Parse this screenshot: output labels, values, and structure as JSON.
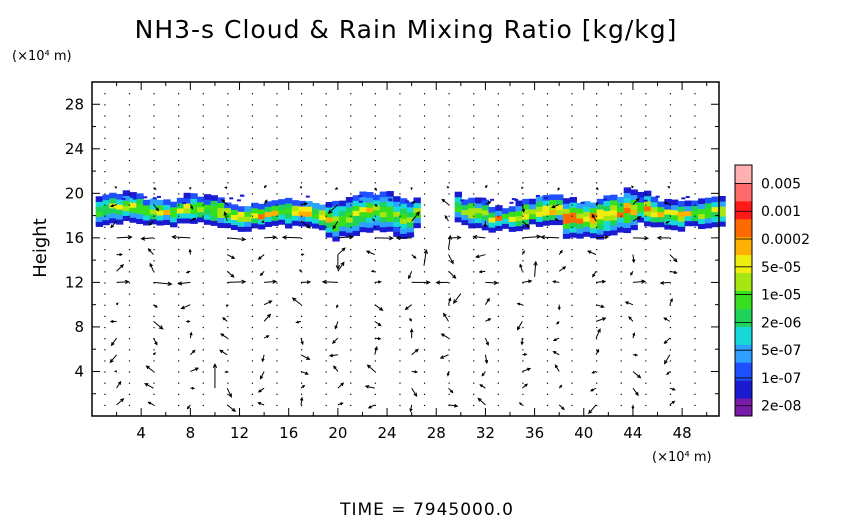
{
  "chart_data": {
    "type": "heatmap",
    "title": "NH3-s Cloud & Rain Mixing Ratio [kg/kg]",
    "ylabel": "Height",
    "xunit": "(×10⁴ m)",
    "yunit": "(×10⁴ m)",
    "xlim": [
      0,
      51
    ],
    "ylim": [
      0,
      30
    ],
    "xticks": [
      4,
      8,
      12,
      16,
      20,
      24,
      28,
      32,
      36,
      40,
      44,
      48
    ],
    "yticks": [
      4,
      8,
      12,
      16,
      20,
      24,
      28
    ],
    "time_label": "TIME  =  7945000.0",
    "colorbar": {
      "labels": [
        "0.005",
        "0.001",
        "0.0002",
        "5e-05",
        "1e-05",
        "2e-06",
        "5e-07",
        "1e-07",
        "2e-08"
      ],
      "colors": [
        "#7a1aa8",
        "#1a1ad0",
        "#1f50ff",
        "#2ea0ff",
        "#16d8d8",
        "#1fd35a",
        "#36e01c",
        "#a8e612",
        "#f0ee10",
        "#ffb000",
        "#ff6a00",
        "#ff1a1a",
        "#ff6b6b",
        "#ffb0b0"
      ]
    },
    "cloud_layer": {
      "z_base": 16,
      "z_top": 19.5,
      "segments": [
        {
          "x0": 0.3,
          "x1": 26.5,
          "peak_level": 10
        },
        {
          "x0": 29.5,
          "x1": 51,
          "peak_level": 11
        }
      ]
    },
    "wind_vectors": {
      "note": "velocity field arrows, strongest near z=16 and z=12",
      "strong_rows": [
        {
          "z": 16,
          "x": [
            2,
            5,
            8,
            11,
            14,
            17,
            20,
            23,
            26,
            29,
            32,
            35,
            38,
            41,
            44,
            47
          ],
          "u": [
            2.5,
            -2,
            -3,
            3,
            2,
            -3,
            2.5,
            3,
            -2.5,
            2,
            -2,
            3,
            -3,
            2,
            2.5,
            -2
          ]
        },
        {
          "z": 12,
          "x": [
            2,
            5,
            8,
            11,
            14,
            17,
            20,
            23,
            26,
            29,
            32,
            35,
            38,
            41,
            44,
            47
          ],
          "u": [
            2,
            3,
            -2,
            3,
            2,
            1.5,
            -2.5,
            1,
            3,
            -2,
            2,
            1.5,
            -1,
            1.5,
            2,
            -1.5
          ]
        }
      ]
    }
  }
}
